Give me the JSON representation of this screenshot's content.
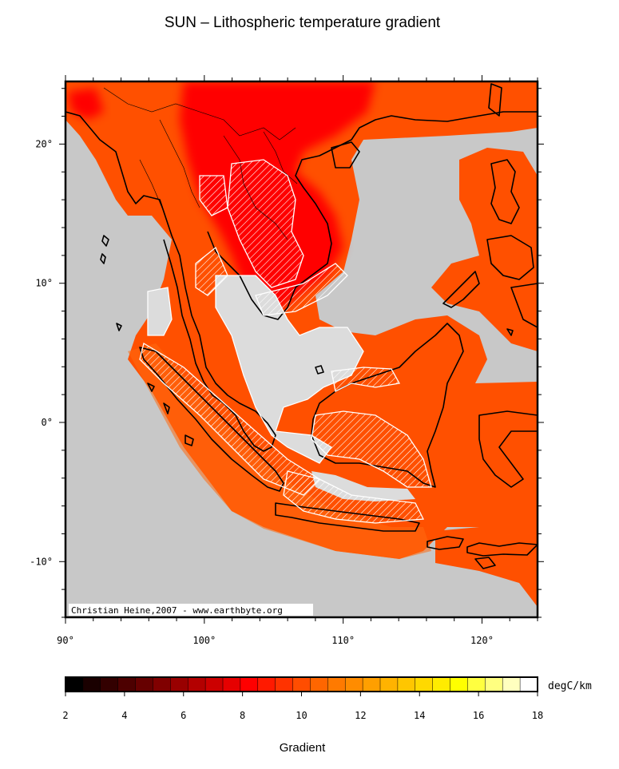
{
  "title": "SUN – Lithospheric temperature gradient",
  "credit": "Christian Heine,2007 - www.earthbyte.org",
  "map": {
    "lon_range": [
      90,
      124
    ],
    "lat_range": [
      -14,
      24.5
    ],
    "lon_ticks": [
      {
        "value": 90,
        "label": "90°"
      },
      {
        "value": 100,
        "label": "100°"
      },
      {
        "value": 110,
        "label": "110°"
      },
      {
        "value": 120,
        "label": "120°"
      }
    ],
    "lat_ticks": [
      {
        "value": 20,
        "label": "20°"
      },
      {
        "value": 10,
        "label": "10°"
      },
      {
        "value": 0,
        "label": "0°"
      },
      {
        "value": -10,
        "label": "-10°"
      }
    ],
    "colors": {
      "ocean": "#c8c8c8",
      "gradient_high": "#ff0000",
      "gradient_mid": "#ff5000",
      "gradient_low": "#ff6a10",
      "sedimentary_basins": "#dcdcdc"
    }
  },
  "colorbar": {
    "label": "Gradient",
    "unit": "degC/km",
    "min": 2,
    "max": 18,
    "ticks": [
      "2",
      "4",
      "6",
      "8",
      "10",
      "12",
      "14",
      "16",
      "18"
    ],
    "colors": [
      "#000000",
      "#1a0000",
      "#330000",
      "#4d0000",
      "#660000",
      "#800000",
      "#990000",
      "#b30000",
      "#cc0000",
      "#e60000",
      "#ff0000",
      "#ff1a00",
      "#ff3300",
      "#ff4d00",
      "#ff6600",
      "#ff7a00",
      "#ff8c00",
      "#ff9f00",
      "#ffb300",
      "#ffc600",
      "#ffd900",
      "#ffec00",
      "#ffff00",
      "#ffff40",
      "#ffff80",
      "#ffffbf",
      "#ffffff"
    ]
  }
}
